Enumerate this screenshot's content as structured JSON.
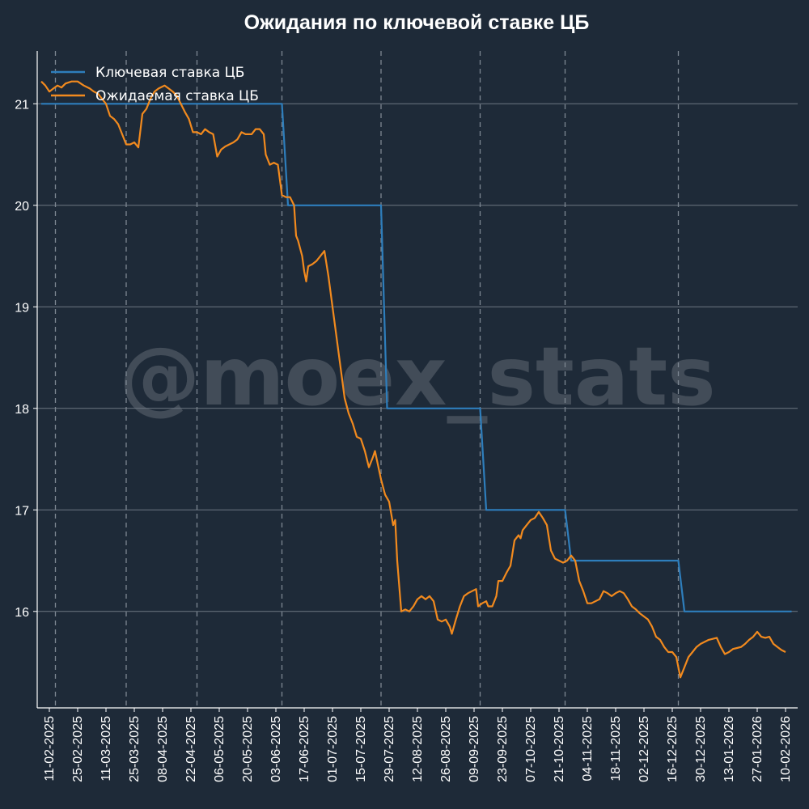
{
  "chart_data": {
    "type": "line",
    "title": "Ожидания по ключевой ставке ЦБ",
    "xlabel": "",
    "ylabel": "",
    "x_start": "2025-02-05",
    "x_end": "2026-02-16",
    "ylim": [
      15.05,
      21.52
    ],
    "yticks": [
      16,
      17,
      18,
      19,
      20,
      21
    ],
    "xticks": [
      "11-02-2025",
      "25-02-2025",
      "11-03-2025",
      "25-03-2025",
      "08-04-2025",
      "22-04-2025",
      "06-05-2025",
      "20-05-2025",
      "03-06-2025",
      "17-06-2025",
      "01-07-2025",
      "15-07-2025",
      "29-07-2025",
      "12-08-2025",
      "26-08-2025",
      "09-09-2025",
      "23-09-2025",
      "07-10-2025",
      "21-10-2025",
      "04-11-2025",
      "18-11-2025",
      "02-12-2025",
      "16-12-2025",
      "30-12-2025",
      "13-01-2026",
      "27-01-2026",
      "10-02-2026"
    ],
    "meeting_dates": [
      "2025-02-14",
      "2025-03-21",
      "2025-04-25",
      "2025-06-06",
      "2025-07-25",
      "2025-09-12",
      "2025-10-24",
      "2025-12-19"
    ],
    "grid": true,
    "legend": "top-left",
    "watermark": "@moex_stats",
    "colors": {
      "background": "#1e2a38",
      "key_rate": "#2e7ebc",
      "expected_rate": "#f28a1e",
      "grid": "#6d7782"
    },
    "series": [
      {
        "name": "Ключевая ставка ЦБ",
        "color": "#2e7ebc",
        "points": [
          [
            "2025-02-07",
            21
          ],
          [
            "2025-06-06",
            21
          ],
          [
            "2025-06-09",
            20
          ],
          [
            "2025-07-25",
            20
          ],
          [
            "2025-07-28",
            18
          ],
          [
            "2025-09-12",
            18
          ],
          [
            "2025-09-15",
            17
          ],
          [
            "2025-10-24",
            17
          ],
          [
            "2025-10-27",
            16.5
          ],
          [
            "2025-12-19",
            16.5
          ],
          [
            "2025-12-22",
            16
          ],
          [
            "2026-02-13",
            16
          ]
        ]
      },
      {
        "name": "Ожидаемая ставка ЦБ",
        "color": "#f28a1e",
        "points": [
          [
            "2025-02-07",
            21.22
          ],
          [
            "2025-02-09",
            21.18
          ],
          [
            "2025-02-11",
            21.12
          ],
          [
            "2025-02-13",
            21.15
          ],
          [
            "2025-02-15",
            21.18
          ],
          [
            "2025-02-17",
            21.16
          ],
          [
            "2025-02-19",
            21.2
          ],
          [
            "2025-02-22",
            21.22
          ],
          [
            "2025-02-25",
            21.22
          ],
          [
            "2025-02-28",
            21.18
          ],
          [
            "2025-03-03",
            21.15
          ],
          [
            "2025-03-05",
            21.12
          ],
          [
            "2025-03-07",
            21.1
          ],
          [
            "2025-03-09",
            21.05
          ],
          [
            "2025-03-11",
            21.0
          ],
          [
            "2025-03-13",
            20.88
          ],
          [
            "2025-03-15",
            20.85
          ],
          [
            "2025-03-17",
            20.8
          ],
          [
            "2025-03-19",
            20.7
          ],
          [
            "2025-03-21",
            20.6
          ],
          [
            "2025-03-23",
            20.6
          ],
          [
            "2025-03-25",
            20.62
          ],
          [
            "2025-03-27",
            20.57
          ],
          [
            "2025-03-29",
            20.9
          ],
          [
            "2025-03-31",
            20.95
          ],
          [
            "2025-04-02",
            21.05
          ],
          [
            "2025-04-04",
            21.12
          ],
          [
            "2025-04-06",
            21.15
          ],
          [
            "2025-04-09",
            21.18
          ],
          [
            "2025-04-11",
            21.15
          ],
          [
            "2025-04-13",
            21.12
          ],
          [
            "2025-04-15",
            21.08
          ],
          [
            "2025-04-17",
            21.0
          ],
          [
            "2025-04-19",
            20.92
          ],
          [
            "2025-04-21",
            20.85
          ],
          [
            "2025-04-23",
            20.72
          ],
          [
            "2025-04-25",
            20.72
          ],
          [
            "2025-04-27",
            20.7
          ],
          [
            "2025-04-29",
            20.75
          ],
          [
            "2025-05-01",
            20.72
          ],
          [
            "2025-05-03",
            20.7
          ],
          [
            "2025-05-05",
            20.48
          ],
          [
            "2025-05-07",
            20.55
          ],
          [
            "2025-05-09",
            20.58
          ],
          [
            "2025-05-11",
            20.6
          ],
          [
            "2025-05-13",
            20.62
          ],
          [
            "2025-05-15",
            20.65
          ],
          [
            "2025-05-17",
            20.72
          ],
          [
            "2025-05-19",
            20.7
          ],
          [
            "2025-05-22",
            20.7
          ],
          [
            "2025-05-24",
            20.75
          ],
          [
            "2025-05-26",
            20.75
          ],
          [
            "2025-05-28",
            20.7
          ],
          [
            "2025-05-29",
            20.5
          ],
          [
            "2025-05-31",
            20.4
          ],
          [
            "2025-06-02",
            20.42
          ],
          [
            "2025-06-04",
            20.4
          ],
          [
            "2025-06-06",
            20.1
          ],
          [
            "2025-06-08",
            20.08
          ],
          [
            "2025-06-10",
            20.08
          ],
          [
            "2025-06-12",
            20.0
          ],
          [
            "2025-06-13",
            19.7
          ],
          [
            "2025-06-14",
            19.65
          ],
          [
            "2025-06-16",
            19.5
          ],
          [
            "2025-06-17",
            19.35
          ],
          [
            "2025-06-18",
            19.25
          ],
          [
            "2025-06-19",
            19.4
          ],
          [
            "2025-06-21",
            19.42
          ],
          [
            "2025-06-23",
            19.45
          ],
          [
            "2025-06-25",
            19.5
          ],
          [
            "2025-06-27",
            19.55
          ],
          [
            "2025-06-29",
            19.3
          ],
          [
            "2025-07-01",
            19.0
          ],
          [
            "2025-07-03",
            18.7
          ],
          [
            "2025-07-05",
            18.4
          ],
          [
            "2025-07-07",
            18.1
          ],
          [
            "2025-07-09",
            17.95
          ],
          [
            "2025-07-11",
            17.85
          ],
          [
            "2025-07-13",
            17.72
          ],
          [
            "2025-07-15",
            17.7
          ],
          [
            "2025-07-17",
            17.58
          ],
          [
            "2025-07-19",
            17.42
          ],
          [
            "2025-07-21",
            17.52
          ],
          [
            "2025-07-22",
            17.58
          ],
          [
            "2025-07-25",
            17.3
          ],
          [
            "2025-07-27",
            17.15
          ],
          [
            "2025-07-29",
            17.08
          ],
          [
            "2025-07-31",
            16.85
          ],
          [
            "2025-08-01",
            16.9
          ],
          [
            "2025-08-02",
            16.5
          ],
          [
            "2025-08-03",
            16.25
          ],
          [
            "2025-08-04",
            16.0
          ],
          [
            "2025-08-06",
            16.02
          ],
          [
            "2025-08-08",
            16.0
          ],
          [
            "2025-08-10",
            16.05
          ],
          [
            "2025-08-12",
            16.12
          ],
          [
            "2025-08-14",
            16.15
          ],
          [
            "2025-08-16",
            16.12
          ],
          [
            "2025-08-18",
            16.15
          ],
          [
            "2025-08-20",
            16.1
          ],
          [
            "2025-08-22",
            15.92
          ],
          [
            "2025-08-24",
            15.9
          ],
          [
            "2025-08-26",
            15.92
          ],
          [
            "2025-08-28",
            15.85
          ],
          [
            "2025-08-29",
            15.78
          ],
          [
            "2025-08-31",
            15.92
          ],
          [
            "2025-09-02",
            16.05
          ],
          [
            "2025-09-04",
            16.15
          ],
          [
            "2025-09-06",
            16.18
          ],
          [
            "2025-09-08",
            16.2
          ],
          [
            "2025-09-10",
            16.22
          ],
          [
            "2025-09-11",
            16.05
          ],
          [
            "2025-09-13",
            16.08
          ],
          [
            "2025-09-15",
            16.1
          ],
          [
            "2025-09-16",
            16.05
          ],
          [
            "2025-09-18",
            16.05
          ],
          [
            "2025-09-20",
            16.15
          ],
          [
            "2025-09-21",
            16.3
          ],
          [
            "2025-09-23",
            16.3
          ],
          [
            "2025-09-25",
            16.38
          ],
          [
            "2025-09-27",
            16.45
          ],
          [
            "2025-09-29",
            16.7
          ],
          [
            "2025-10-01",
            16.75
          ],
          [
            "2025-10-02",
            16.72
          ],
          [
            "2025-10-03",
            16.8
          ],
          [
            "2025-10-05",
            16.85
          ],
          [
            "2025-10-07",
            16.9
          ],
          [
            "2025-10-09",
            16.92
          ],
          [
            "2025-10-11",
            16.98
          ],
          [
            "2025-10-13",
            16.92
          ],
          [
            "2025-10-15",
            16.85
          ],
          [
            "2025-10-17",
            16.6
          ],
          [
            "2025-10-19",
            16.52
          ],
          [
            "2025-10-21",
            16.5
          ],
          [
            "2025-10-23",
            16.48
          ],
          [
            "2025-10-25",
            16.5
          ],
          [
            "2025-10-27",
            16.55
          ],
          [
            "2025-10-29",
            16.5
          ],
          [
            "2025-10-31",
            16.3
          ],
          [
            "2025-11-02",
            16.2
          ],
          [
            "2025-11-04",
            16.08
          ],
          [
            "2025-11-06",
            16.08
          ],
          [
            "2025-11-08",
            16.1
          ],
          [
            "2025-11-10",
            16.12
          ],
          [
            "2025-11-12",
            16.2
          ],
          [
            "2025-11-14",
            16.18
          ],
          [
            "2025-11-16",
            16.15
          ],
          [
            "2025-11-18",
            16.18
          ],
          [
            "2025-11-20",
            16.2
          ],
          [
            "2025-11-22",
            16.18
          ],
          [
            "2025-11-24",
            16.12
          ],
          [
            "2025-11-26",
            16.05
          ],
          [
            "2025-11-28",
            16.02
          ],
          [
            "2025-11-30",
            15.98
          ],
          [
            "2025-12-02",
            15.95
          ],
          [
            "2025-12-04",
            15.92
          ],
          [
            "2025-12-06",
            15.85
          ],
          [
            "2025-12-08",
            15.75
          ],
          [
            "2025-12-10",
            15.72
          ],
          [
            "2025-12-12",
            15.65
          ],
          [
            "2025-12-14",
            15.6
          ],
          [
            "2025-12-16",
            15.6
          ],
          [
            "2025-12-18",
            15.55
          ],
          [
            "2025-12-19",
            15.45
          ],
          [
            "2025-12-20",
            15.35
          ],
          [
            "2025-12-22",
            15.45
          ],
          [
            "2025-12-24",
            15.55
          ],
          [
            "2025-12-26",
            15.6
          ],
          [
            "2025-12-28",
            15.65
          ],
          [
            "2025-12-30",
            15.68
          ],
          [
            "2026-01-01",
            15.7
          ],
          [
            "2026-01-03",
            15.72
          ],
          [
            "2026-01-05",
            15.73
          ],
          [
            "2026-01-07",
            15.74
          ],
          [
            "2026-01-09",
            15.65
          ],
          [
            "2026-01-11",
            15.58
          ],
          [
            "2026-01-13",
            15.6
          ],
          [
            "2026-01-15",
            15.63
          ],
          [
            "2026-01-17",
            15.64
          ],
          [
            "2026-01-19",
            15.65
          ],
          [
            "2026-01-21",
            15.68
          ],
          [
            "2026-01-23",
            15.72
          ],
          [
            "2026-01-25",
            15.75
          ],
          [
            "2026-01-27",
            15.8
          ],
          [
            "2026-01-29",
            15.75
          ],
          [
            "2026-01-31",
            15.74
          ],
          [
            "2026-02-02",
            15.75
          ],
          [
            "2026-02-04",
            15.68
          ],
          [
            "2026-02-06",
            15.65
          ],
          [
            "2026-02-08",
            15.62
          ],
          [
            "2026-02-10",
            15.6
          ]
        ]
      }
    ]
  }
}
